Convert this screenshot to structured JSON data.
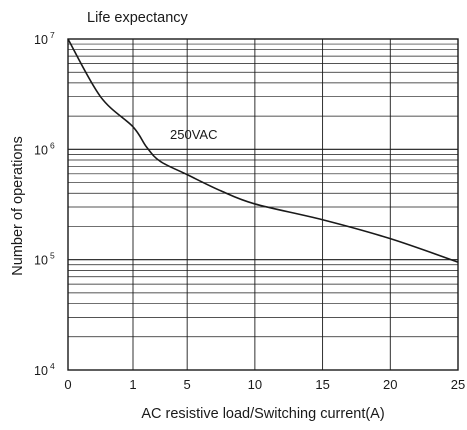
{
  "chart_data": {
    "type": "line",
    "title": "Life expectancy",
    "xlabel": "AC resistive load/Switching current(A)",
    "ylabel": "Number of operations",
    "xlim": [
      0,
      25
    ],
    "x_ticks": [
      0,
      1,
      5,
      10,
      15,
      20,
      25
    ],
    "x_tick_labels": [
      "0",
      "1",
      "5",
      "10",
      "15",
      "20",
      "25"
    ],
    "y_scale": "log",
    "ylim": [
      10000,
      10000000
    ],
    "y_ticks": [
      {
        "value": 10000,
        "base": "10",
        "exp": "4"
      },
      {
        "value": 100000,
        "base": "10",
        "exp": "5"
      },
      {
        "value": 1000000,
        "base": "10",
        "exp": "6"
      },
      {
        "value": 10000000,
        "base": "10",
        "exp": "7"
      }
    ],
    "grid": true,
    "series": [
      {
        "name": "250VAC",
        "x": [
          0,
          0.5,
          1,
          2,
          3,
          5,
          7.5,
          10,
          15,
          20,
          25
        ],
        "y": [
          10000000,
          3000000,
          1600000,
          1050000,
          780000,
          590000,
          420000,
          320000,
          230000,
          155000,
          95000
        ]
      }
    ],
    "annotations": [
      {
        "text": "250VAC",
        "x": 2,
        "y": 1150000
      }
    ]
  }
}
